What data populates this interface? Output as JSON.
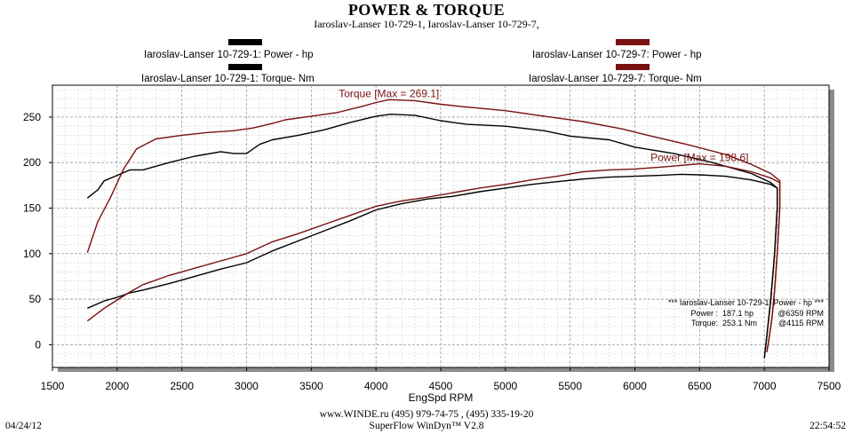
{
  "header": {
    "title": "POWER & TORQUE",
    "subtitle": "Iaroslav-Lanser 10-729-1, Iaroslav-Lanser 10-729-7,"
  },
  "legend": [
    {
      "label": "Iaroslav-Lanser 10-729-1: Power -  hp",
      "color": "#000000"
    },
    {
      "label": "Iaroslav-Lanser 10-729-1: Torque-  Nm",
      "color": "#000000"
    },
    {
      "label": "Iaroslav-Lanser 10-729-7: Power -  hp",
      "color": "#7a1010"
    },
    {
      "label": "Iaroslav-Lanser 10-729-7: Torque-  Nm",
      "color": "#7a1010"
    }
  ],
  "footer": {
    "url": "www.WINDE.ru  (495) 979-74-75 , (495) 335-19-20",
    "app": "SuperFlow WinDyn™ V2.8",
    "date": "04/24/12",
    "time": "22:54:52"
  },
  "chart_data": {
    "type": "line",
    "xlabel": "EngSpd  RPM",
    "ylabel": "",
    "xlim": [
      1500,
      7500
    ],
    "ylim": [
      -25,
      285
    ],
    "xticks": [
      1500,
      2000,
      2500,
      3000,
      3500,
      4000,
      4500,
      5000,
      5500,
      6000,
      6500,
      7000,
      7500
    ],
    "yticks": [
      0,
      50,
      100,
      150,
      200,
      250
    ],
    "grid": true,
    "annotations": [
      {
        "text": "Torque [Max = 269.1]",
        "x": 4100,
        "y": 269.1,
        "color": "#7a1010"
      },
      {
        "text": "Power  [Max = 198.6]",
        "x": 6500,
        "y": 198.6,
        "color": "#7a1010"
      }
    ],
    "summary_box": {
      "header": "*** Iaroslav-Lanser 10-729-1: Power -  hp   ***",
      "lines": [
        {
          "label": "Power  :",
          "value": "187.1 hp",
          "at": "@6359 RPM"
        },
        {
          "label": "Torque:",
          "value": "253.1 Nm",
          "at": "@4115 RPM"
        }
      ]
    },
    "series": [
      {
        "name": "Iaroslav-Lanser 10-729-1: Power -  hp",
        "color": "#000000",
        "x": [
          1770,
          1900,
          2000,
          2100,
          2200,
          2400,
          2600,
          2800,
          3000,
          3200,
          3400,
          3600,
          3800,
          4000,
          4200,
          4400,
          4600,
          4800,
          5000,
          5200,
          5400,
          5600,
          5800,
          6000,
          6200,
          6359,
          6500,
          6700,
          6900,
          7050,
          7100,
          7100,
          7080,
          7050,
          7020,
          7000
        ],
        "y": [
          40,
          48,
          52,
          57,
          60,
          67,
          75,
          83,
          90,
          103,
          114,
          125,
          136,
          148,
          155,
          160,
          163,
          168,
          172,
          176,
          179,
          182,
          184,
          185,
          186,
          187.1,
          186.5,
          185,
          181,
          176,
          172,
          150,
          100,
          50,
          10,
          -15
        ]
      },
      {
        "name": "Iaroslav-Lanser 10-729-1: Torque-  Nm",
        "color": "#000000",
        "x": [
          1770,
          1850,
          1900,
          2000,
          2100,
          2200,
          2400,
          2600,
          2800,
          2900,
          3000,
          3100,
          3200,
          3400,
          3600,
          3800,
          4000,
          4115,
          4300,
          4500,
          4700,
          5000,
          5300,
          5500,
          5800,
          6000,
          6300,
          6600,
          6900,
          7050,
          7100,
          7100,
          7080,
          7050,
          7020,
          7000
        ],
        "y": [
          161,
          170,
          180,
          186,
          192,
          192,
          200,
          207,
          212,
          210,
          210,
          220,
          225,
          230,
          236,
          244,
          251,
          253.1,
          252,
          246,
          242,
          240,
          235,
          229,
          225,
          217,
          210,
          200,
          188,
          178,
          172,
          150,
          100,
          50,
          10,
          -15
        ]
      },
      {
        "name": "Iaroslav-Lanser 10-729-7: Power -  hp",
        "color": "#7a1010",
        "x": [
          1770,
          1900,
          2000,
          2100,
          2200,
          2400,
          2600,
          2800,
          3000,
          3200,
          3400,
          3600,
          3800,
          4000,
          4200,
          4400,
          4600,
          4800,
          5000,
          5200,
          5400,
          5600,
          5800,
          6000,
          6200,
          6500,
          6700,
          6900,
          7050,
          7120,
          7120,
          7100,
          7080,
          7060,
          7040,
          7020
        ],
        "y": [
          26,
          40,
          49,
          58,
          66,
          76,
          84,
          92,
          100,
          113,
          122,
          132,
          142,
          152,
          158,
          162,
          167,
          172,
          176,
          181,
          185,
          190,
          192,
          193,
          195,
          198.6,
          196,
          190,
          183,
          178,
          150,
          100,
          60,
          30,
          10,
          -8
        ]
      },
      {
        "name": "Iaroslav-Lanser 10-729-7: Torque-  Nm",
        "color": "#7a1010",
        "x": [
          1770,
          1850,
          1950,
          2050,
          2150,
          2300,
          2500,
          2700,
          2900,
          3050,
          3200,
          3300,
          3500,
          3700,
          3900,
          4000,
          4100,
          4300,
          4500,
          4700,
          5000,
          5300,
          5600,
          5900,
          6100,
          6400,
          6700,
          6900,
          7050,
          7120,
          7120,
          7100,
          7080,
          7060,
          7040,
          7020
        ],
        "y": [
          101,
          135,
          162,
          193,
          215,
          226,
          230,
          233,
          235,
          238,
          243,
          247,
          251,
          255,
          262,
          266,
          269.1,
          268,
          264,
          261,
          257,
          251,
          245,
          237,
          230,
          220,
          209,
          198,
          188,
          180,
          150,
          100,
          60,
          30,
          10,
          -8
        ]
      }
    ]
  }
}
